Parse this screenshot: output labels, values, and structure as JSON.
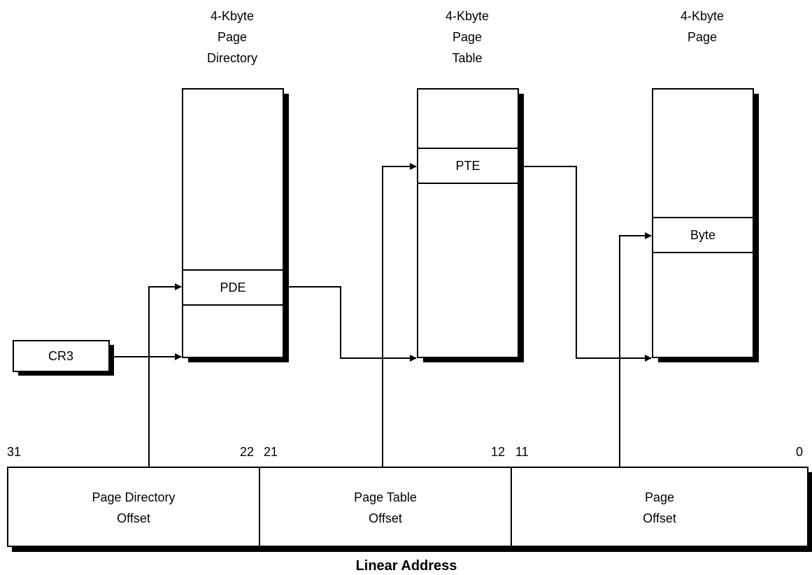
{
  "tables": {
    "page_directory": {
      "title_lines": [
        "4-Kbyte",
        "Page",
        "Directory"
      ],
      "entry": "PDE"
    },
    "page_table": {
      "title_lines": [
        "4-Kbyte",
        "Page",
        "Table"
      ],
      "entry": "PTE"
    },
    "page": {
      "title_lines": [
        "4-Kbyte",
        "Page"
      ],
      "entry": "Byte"
    }
  },
  "register": {
    "label": "CR3"
  },
  "bit_labels": {
    "b31": "31",
    "b22": "22",
    "b21": "21",
    "b12": "12",
    "b11": "11",
    "b0": "0"
  },
  "fields": {
    "directory": {
      "line1": "Page Directory",
      "line2": "Offset"
    },
    "table": {
      "line1": "Page Table",
      "line2": "Offset"
    },
    "page": {
      "line1": "Page",
      "line2": "Offset"
    }
  },
  "caption": "Linear Address",
  "colors": {
    "stroke": "#000000",
    "fill": "#ffffff",
    "shadow": "#000000"
  }
}
